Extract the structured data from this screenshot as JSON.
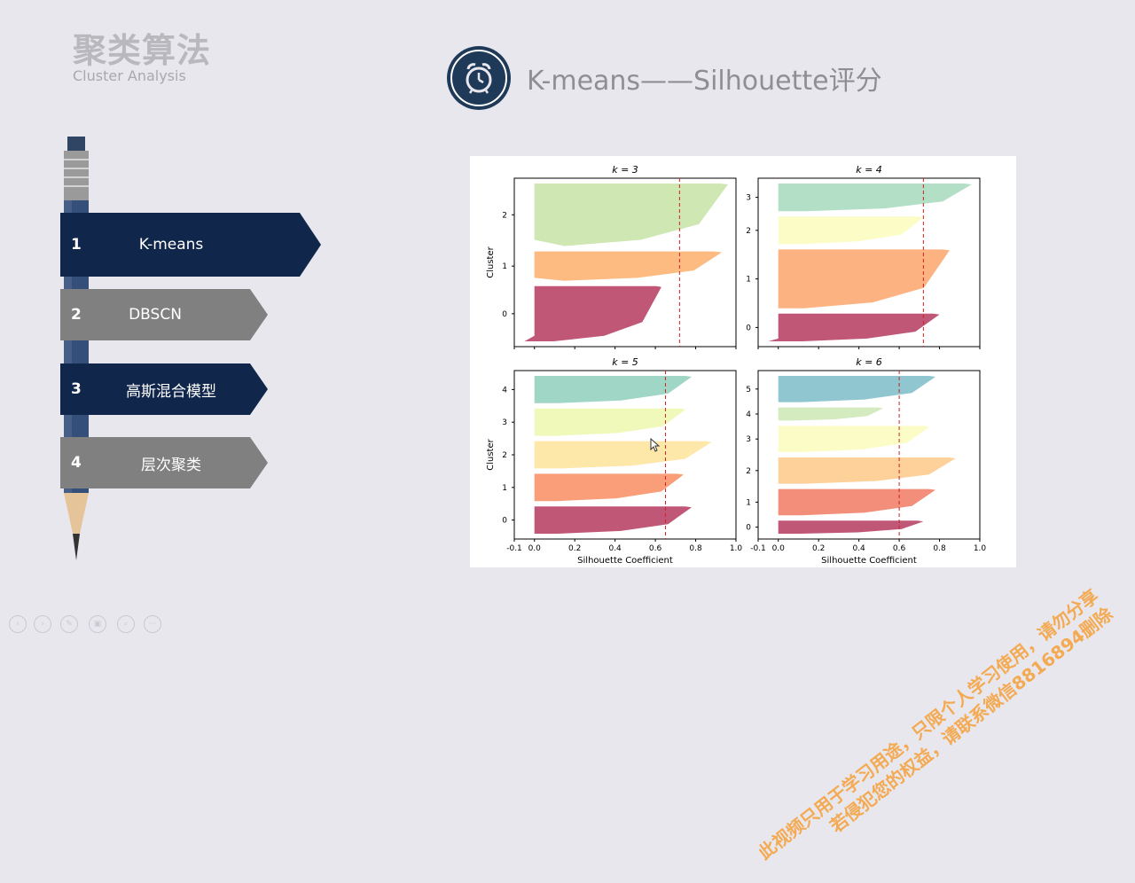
{
  "header": {
    "title": "聚类算法",
    "subtitle": "Cluster Analysis"
  },
  "slide": {
    "title": "K-means——Silhouette评分",
    "icon": "alarm-clock-icon"
  },
  "nav": [
    {
      "num": "1",
      "label": "K-means",
      "active": true
    },
    {
      "num": "2",
      "label": "DBSCN",
      "active": false
    },
    {
      "num": "3",
      "label": "高斯混合模型",
      "active": true
    },
    {
      "num": "4",
      "label": "层次聚类",
      "active": false
    }
  ],
  "colors": {
    "navy": "#10264a",
    "gray": "#808080",
    "clock": "#1f3a58",
    "dashed_line": "#cc2222"
  },
  "chart_data": [
    {
      "type": "area",
      "title": "k = 3",
      "ylabel": "Cluster",
      "xlabel": "",
      "xlim": [
        -0.1,
        1.0
      ],
      "yticks": [
        0,
        1,
        2
      ],
      "avg_silhouette": 0.72,
      "clusters": [
        {
          "label": "0",
          "min": -0.05,
          "max": 0.63,
          "height": 0.3,
          "color": "#b5395f"
        },
        {
          "label": "1",
          "min": 0.15,
          "max": 0.93,
          "height": 0.16,
          "color": "#fdae6b"
        },
        {
          "label": "2",
          "min": 0.15,
          "max": 0.96,
          "height": 0.34,
          "color": "#c7e3a4"
        }
      ]
    },
    {
      "type": "area",
      "title": "k = 4",
      "ylabel": "",
      "xlabel": "",
      "xlim": [
        -0.1,
        1.0
      ],
      "yticks": [
        0,
        1,
        2,
        3
      ],
      "avg_silhouette": 0.72,
      "clusters": [
        {
          "label": "0",
          "min": -0.05,
          "max": 0.8,
          "height": 0.16,
          "color": "#b5395f"
        },
        {
          "label": "1",
          "min": 0.0,
          "max": 0.85,
          "height": 0.34,
          "color": "#fca56b"
        },
        {
          "label": "2",
          "min": 0.0,
          "max": 0.72,
          "height": 0.16,
          "color": "#fbfbbc"
        },
        {
          "label": "3",
          "min": 0.0,
          "max": 0.96,
          "height": 0.16,
          "color": "#a6d9bd"
        }
      ]
    },
    {
      "type": "area",
      "title": "k = 5",
      "ylabel": "Cluster",
      "xlabel": "Silhouette Coefficient",
      "xlim": [
        -0.1,
        1.0
      ],
      "yticks": [
        0,
        1,
        2,
        3,
        4
      ],
      "avg_silhouette": 0.65,
      "clusters": [
        {
          "label": "0",
          "min": 0.0,
          "max": 0.78,
          "height": 0.16,
          "color": "#b5395f"
        },
        {
          "label": "1",
          "min": 0.0,
          "max": 0.74,
          "height": 0.16,
          "color": "#f88d62"
        },
        {
          "label": "2",
          "min": 0.0,
          "max": 0.88,
          "height": 0.16,
          "color": "#fde39a"
        },
        {
          "label": "3",
          "min": 0.0,
          "max": 0.75,
          "height": 0.16,
          "color": "#eef8ae"
        },
        {
          "label": "4",
          "min": 0.0,
          "max": 0.78,
          "height": 0.16,
          "color": "#8fcfbb"
        }
      ]
    },
    {
      "type": "area",
      "title": "k = 6",
      "ylabel": "",
      "xlabel": "Silhouette Coefficient",
      "xlim": [
        -0.1,
        1.0
      ],
      "yticks": [
        0,
        1,
        2,
        3,
        4,
        5
      ],
      "avg_silhouette": 0.6,
      "clusters": [
        {
          "label": "0",
          "min": 0.0,
          "max": 0.72,
          "height": 0.08,
          "color": "#b5395f"
        },
        {
          "label": "1",
          "min": 0.0,
          "max": 0.78,
          "height": 0.16,
          "color": "#f07a62"
        },
        {
          "label": "2",
          "min": 0.0,
          "max": 0.88,
          "height": 0.16,
          "color": "#fdc987"
        },
        {
          "label": "3",
          "min": 0.0,
          "max": 0.75,
          "height": 0.16,
          "color": "#fbfbbd"
        },
        {
          "label": "4",
          "min": 0.0,
          "max": 0.52,
          "height": 0.08,
          "color": "#cde6b4"
        },
        {
          "label": "5",
          "min": 0.0,
          "max": 0.78,
          "height": 0.16,
          "color": "#7cbcc8"
        }
      ]
    }
  ],
  "watermark": {
    "line1": "此视频只用于学习用途，只限个人学习使用，请勿分享",
    "line2": "若侵犯您的权益，请联系微信8816894删除"
  },
  "footer": [
    "‹",
    "›",
    "✎",
    "▣",
    "⌕",
    "⋯"
  ]
}
